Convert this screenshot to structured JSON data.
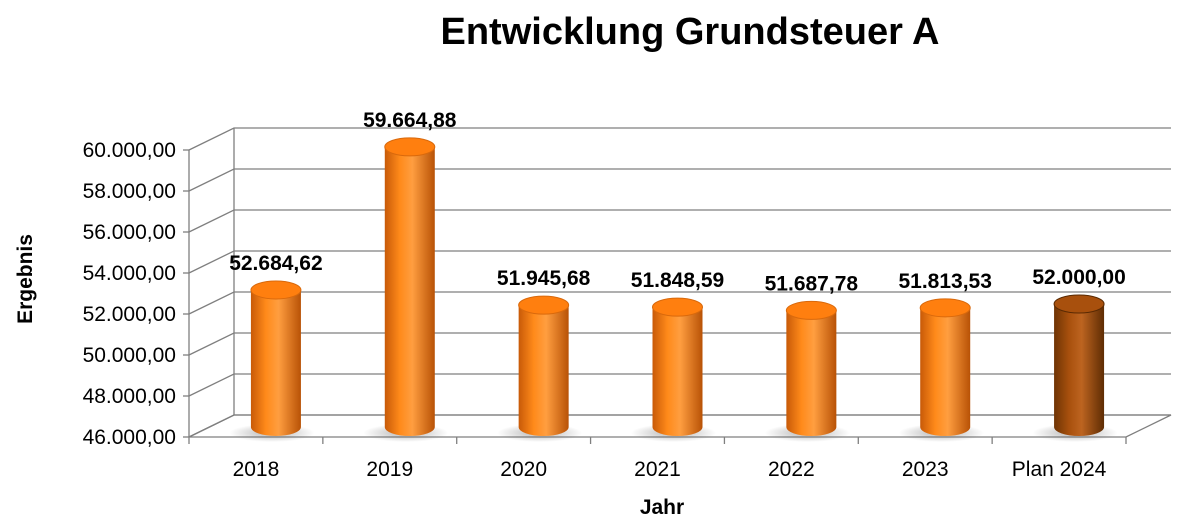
{
  "chart_data": {
    "type": "bar",
    "title": "Entwicklung Grundsteuer A",
    "xlabel": "Jahr",
    "ylabel": "Ergebnis",
    "categories": [
      "2018",
      "2019",
      "2020",
      "2021",
      "2022",
      "2023",
      "Plan 2024"
    ],
    "values": [
      52684.62,
      59664.88,
      51945.68,
      51848.59,
      51687.78,
      51813.53,
      52000.0
    ],
    "data_labels": [
      "52.684,62",
      "59.664,88",
      "51.945,68",
      "51.848,59",
      "51.687,78",
      "51.813,53",
      "52.000,00"
    ],
    "ylim": [
      46000,
      60000
    ],
    "yticks": [
      46000,
      48000,
      50000,
      52000,
      54000,
      56000,
      58000,
      60000
    ],
    "ytick_labels": [
      "46.000,00",
      "48.000,00",
      "50.000,00",
      "52.000,00",
      "54.000,00",
      "56.000,00",
      "58.000,00",
      "60.000,00"
    ],
    "grid": true,
    "style": "3d-cylinder",
    "colors": {
      "bar": "#ff7f0f",
      "bar_highlight": "#a8500d",
      "grid": "#7f7f7f"
    },
    "highlight_category": "Plan 2024"
  }
}
